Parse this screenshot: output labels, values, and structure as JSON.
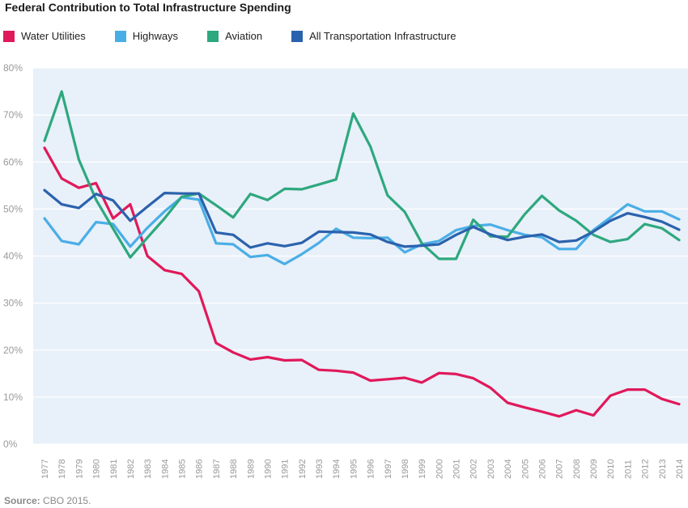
{
  "chart_data": {
    "type": "line",
    "title": "Federal Contribution to Total Infrastructure Spending",
    "xlabel": "",
    "ylabel": "",
    "ylim": [
      0,
      80
    ],
    "y_ticks": [
      "0%",
      "10%",
      "20%",
      "30%",
      "40%",
      "50%",
      "60%",
      "70%",
      "80%"
    ],
    "grid": true,
    "legend_position": "top-left",
    "x": [
      1977,
      1978,
      1979,
      1980,
      1981,
      1982,
      1983,
      1984,
      1985,
      1986,
      1987,
      1988,
      1989,
      1990,
      1991,
      1992,
      1993,
      1994,
      1995,
      1996,
      1997,
      1998,
      1999,
      2000,
      2001,
      2002,
      2003,
      2004,
      2005,
      2006,
      2007,
      2008,
      2009,
      2010,
      2011,
      2012,
      2013,
      2014
    ],
    "series": [
      {
        "name": "Water Utilities",
        "color": "#e0195a",
        "values": [
          63,
          56.5,
          54.5,
          55.5,
          48,
          51,
          40,
          37,
          36.2,
          32.5,
          21.5,
          19.5,
          18,
          18.5,
          17.8,
          17.9,
          15.8,
          15.6,
          15.2,
          13.5,
          13.8,
          14.1,
          13.1,
          15.1,
          14.9,
          14.0,
          12.0,
          8.8,
          7.8,
          6.9,
          5.9,
          7.2,
          6.1,
          10.3,
          11.6,
          11.6,
          9.6,
          8.5
        ]
      },
      {
        "name": "Highways",
        "color": "#4aaee6",
        "values": [
          48,
          43.2,
          42.5,
          47.2,
          46.8,
          42,
          46,
          49.5,
          52.5,
          52,
          42.7,
          42.5,
          39.8,
          40.2,
          38.3,
          40.4,
          42.8,
          45.8,
          43.9,
          43.8,
          43.9,
          40.8,
          42.5,
          43.2,
          45.5,
          46.4,
          46.7,
          45.5,
          44.5,
          44.0,
          41.5,
          41.5,
          45.5,
          48.2,
          51,
          49.5,
          49.5,
          47.8
        ]
      },
      {
        "name": "Aviation",
        "color": "#2ea87e",
        "values": [
          64.5,
          75,
          60.5,
          52,
          45.8,
          39.7,
          43.9,
          48,
          52.6,
          53.3,
          50.8,
          48.2,
          53.2,
          51.9,
          54.3,
          54.2,
          55.2,
          56.3,
          70.3,
          63.3,
          52.9,
          49.4,
          42.7,
          39.4,
          39.4,
          47.7,
          44.2,
          44.1,
          48.9,
          52.8,
          49.7,
          47.5,
          44.5,
          43.0,
          43.6,
          46.8,
          45.9,
          43.4
        ]
      },
      {
        "name": "All Transportation Infrastructure",
        "color": "#2b62ad",
        "values": [
          54,
          51,
          50.2,
          53.2,
          51.8,
          47.5,
          50.5,
          53.4,
          53.3,
          53.3,
          45,
          44.5,
          41.8,
          42.7,
          42.1,
          42.8,
          45.2,
          45.1,
          45.0,
          44.6,
          43.0,
          42.0,
          42.2,
          42.5,
          44.5,
          46.2,
          44.6,
          43.4,
          44.1,
          44.6,
          43.0,
          43.3,
          45.2,
          47.5,
          49.1,
          48.3,
          47.3,
          45.6
        ]
      }
    ]
  },
  "footer": {
    "source_label": "Source:",
    "source_text": "CBO 2015."
  }
}
